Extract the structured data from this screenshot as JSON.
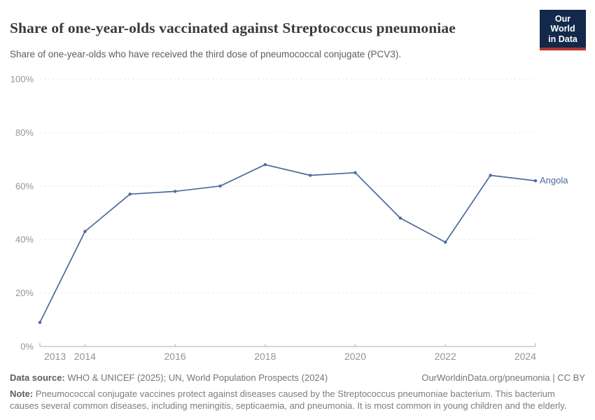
{
  "header": {
    "title": "Share of one-year-olds vaccinated against Streptococcus pneumoniae",
    "subtitle": "Share of one-year-olds who have received the third dose of pneumococcal conjugate (PCV3).",
    "logo": {
      "line1": "Our World",
      "line2": "in Data"
    }
  },
  "chart_data": {
    "type": "line",
    "title": "Share of one-year-olds vaccinated against Streptococcus pneumoniae",
    "x": [
      2013,
      2014,
      2015,
      2016,
      2017,
      2018,
      2019,
      2020,
      2021,
      2022,
      2023,
      2024
    ],
    "series": [
      {
        "name": "Angola",
        "color": "#4C6A9C",
        "values": [
          9,
          43,
          57,
          58,
          60,
          68,
          64,
          65,
          48,
          39,
          64,
          62
        ]
      }
    ],
    "xlim": [
      2013,
      2024
    ],
    "ylim": [
      0,
      100
    ],
    "x_tick_labels": [
      2013,
      2014,
      2016,
      2018,
      2020,
      2022,
      2024
    ],
    "y_ticks": [
      0,
      20,
      40,
      60,
      80,
      100
    ],
    "y_tick_suffix": "%",
    "grid": "horizontal-dashed",
    "legend_position": "end-of-line-label",
    "end_label": "Angola"
  },
  "footer": {
    "data_source_label": "Data source:",
    "data_source": "WHO & UNICEF (2025); UN, World Population Prospects (2024)",
    "link": "OurWorldinData.org/pneumonia",
    "separator": " | ",
    "license": "CC BY",
    "note_label": "Note:",
    "note": "Pneumococcal conjugate vaccines protect against diseases caused by the Streptococcus pneumoniae bacterium. This bacterium causes several common diseases, including meningitis, septicaemia, and pneumonia. It is most common in young children and the elderly."
  },
  "colors": {
    "line": "#4C6A9C",
    "grid": "#e3e3e3",
    "axis": "#adadad",
    "tick": "#b8b8b8",
    "axis_text": "#949494",
    "logo_bg": "#12294b",
    "logo_stripe": "#b2362e"
  }
}
